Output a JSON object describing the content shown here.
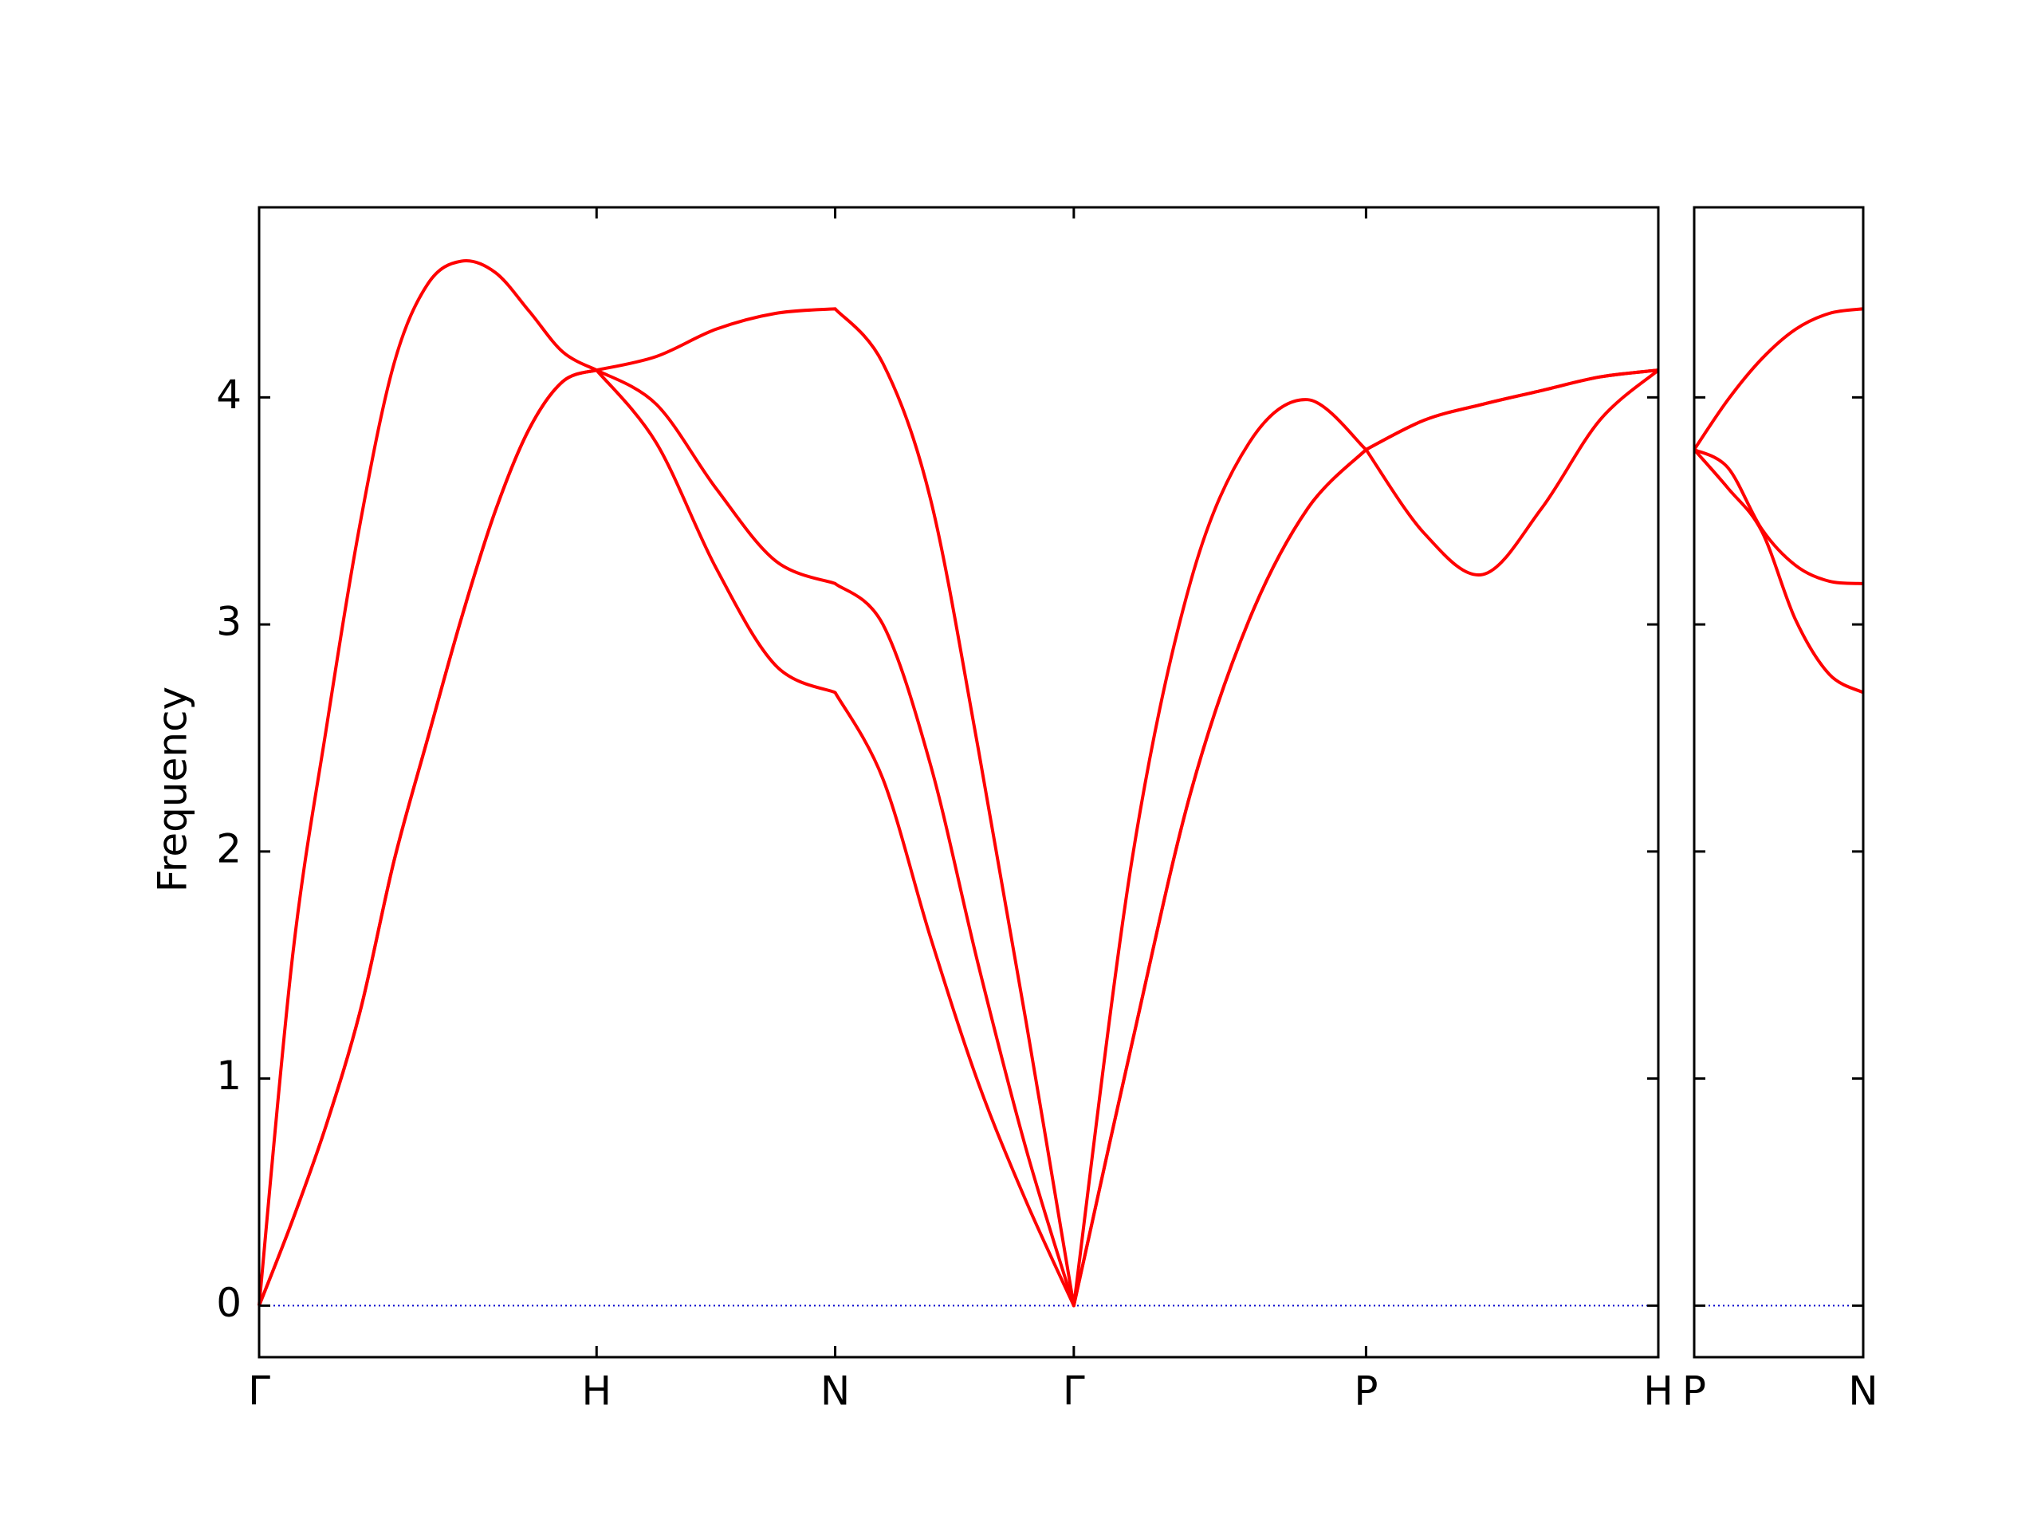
{
  "chart_data": [
    {
      "type": "line",
      "ylabel": "Frequency",
      "x": [
        0,
        0.1,
        0.2,
        0.3,
        0.4,
        0.5,
        0.6,
        0.7,
        0.8,
        0.9,
        1.0,
        1.1768,
        1.3536,
        1.5303,
        1.7071,
        1.8485,
        1.9899,
        2.1314,
        2.2728,
        2.4142,
        2.5874,
        2.7606,
        2.9338,
        3.107,
        3.2802,
        3.4534,
        3.6266,
        3.7999,
        3.9731,
        4.1463
      ],
      "series": [
        {
          "color": "#ff0000",
          "values": [
            0,
            0.38,
            0.8,
            1.3,
            1.96,
            2.5,
            3.03,
            3.5,
            3.86,
            4.07,
            4.12,
            3.8,
            3.25,
            2.82,
            2.7,
            2.32,
            1.62,
            0.98,
            0.46,
            0,
            1.16,
            2.26,
            3.02,
            3.51,
            3.77,
            3.4,
            3.22,
            3.51,
            3.9,
            4.12
          ]
        },
        {
          "color": "#ff0000",
          "values": [
            0,
            0.38,
            0.8,
            1.3,
            1.96,
            2.5,
            3.03,
            3.5,
            3.86,
            4.07,
            4.12,
            3.97,
            3.6,
            3.28,
            3.18,
            3.0,
            2.38,
            1.5,
            0.69,
            0,
            1.16,
            2.26,
            3.02,
            3.51,
            3.77,
            3.9,
            3.97,
            4.03,
            4.09,
            4.12
          ]
        },
        {
          "color": "#ff0000",
          "values": [
            0,
            1.55,
            2.55,
            3.45,
            4.15,
            4.5,
            4.6,
            4.55,
            4.38,
            4.2,
            4.12,
            4.18,
            4.3,
            4.37,
            4.39,
            4.15,
            3.55,
            2.45,
            1.25,
            0,
            1.97,
            3.19,
            3.8,
            3.99,
            3.77,
            3.9,
            3.97,
            4.03,
            4.09,
            4.12
          ]
        }
      ],
      "xlim": [
        0,
        4.1463
      ],
      "xticks": [
        {
          "value": 0,
          "label": "Γ"
        },
        {
          "value": 1.0,
          "label": "H"
        },
        {
          "value": 1.7071,
          "label": "N"
        },
        {
          "value": 2.4142,
          "label": "Γ"
        },
        {
          "value": 3.2802,
          "label": "P"
        },
        {
          "value": 4.1463,
          "label": "H"
        }
      ],
      "ylim": [
        -0.227,
        4.837
      ],
      "yticks": [
        0,
        1,
        2,
        3,
        4
      ],
      "show_ytick_labels": true,
      "hlines": [
        {
          "y": 0,
          "color": "#0000cc",
          "dash": "dotted"
        }
      ]
    },
    {
      "type": "line",
      "x": [
        0,
        0.1,
        0.2,
        0.3,
        0.4,
        0.5
      ],
      "series": [
        {
          "color": "#ff0000",
          "values": [
            3.77,
            3.6,
            3.41,
            3.02,
            2.78,
            2.7
          ]
        },
        {
          "color": "#ff0000",
          "values": [
            3.77,
            3.69,
            3.42,
            3.26,
            3.19,
            3.18
          ]
        },
        {
          "color": "#ff0000",
          "values": [
            3.77,
            3.99,
            4.17,
            4.3,
            4.37,
            4.39
          ]
        }
      ],
      "xlim": [
        0,
        0.5
      ],
      "xticks": [
        {
          "value": 0,
          "label": "P"
        },
        {
          "value": 0.5,
          "label": "N"
        }
      ],
      "ylim": [
        -0.227,
        4.837
      ],
      "yticks": [
        0,
        1,
        2,
        3,
        4
      ],
      "show_ytick_labels": false,
      "hlines": [
        {
          "y": 0,
          "color": "#0000cc",
          "dash": "dotted"
        }
      ]
    }
  ]
}
